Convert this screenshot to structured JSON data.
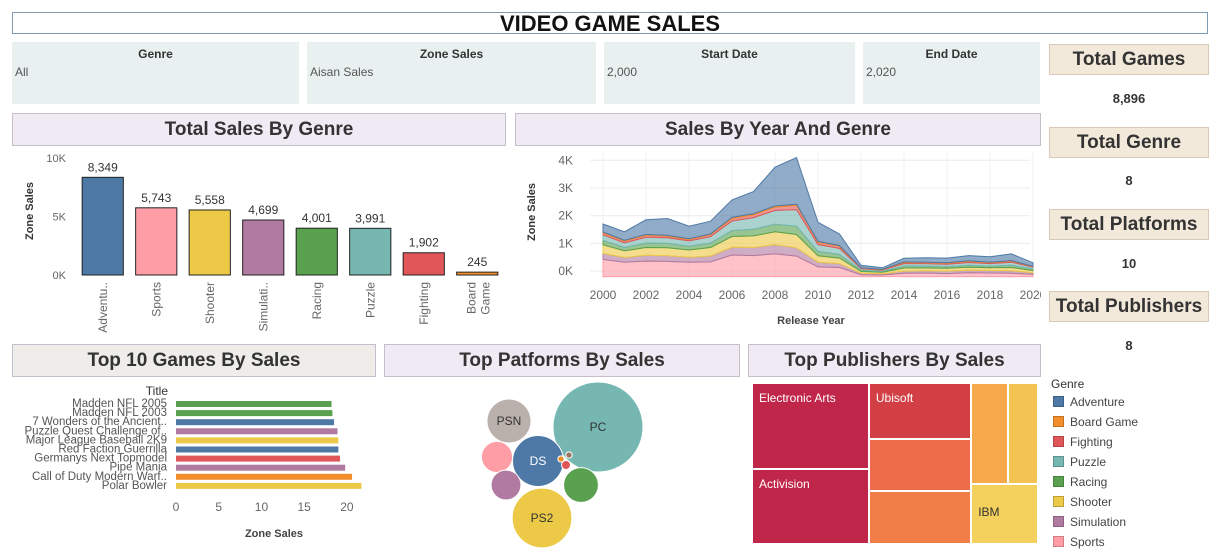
{
  "dashboard": {
    "title": "VIDEO GAME SALES"
  },
  "filters": [
    {
      "label": "Genre",
      "value": "All"
    },
    {
      "label": "Zone Sales",
      "value": "Aisan Sales"
    },
    {
      "label": "Start Date",
      "value": "2,000"
    },
    {
      "label": "End Date",
      "value": "2,020"
    }
  ],
  "kpis": [
    {
      "label": "Total Games",
      "value": "8,896"
    },
    {
      "label": "Total Genre",
      "value": "8"
    },
    {
      "label": "Total Platforms",
      "value": "10"
    },
    {
      "label": "Total Publishers",
      "value": "8"
    }
  ],
  "sections": {
    "sales_by_genre": "Total Sales By Genre",
    "sales_by_year": "Sales By Year And Genre",
    "top_games": "Top 10 Games By Sales",
    "top_platforms": "Top Patforms By Sales",
    "top_publishers": "Top Publishers By Sales"
  },
  "colors": {
    "Adventure": "#4e79a7",
    "Board Game": "#f28e2b",
    "Fighting": "#e15759",
    "Puzzle": "#76b7b2",
    "Racing": "#59a14f",
    "Shooter": "#edc948",
    "Simulation": "#b07aa1",
    "Sports": "#ff9da7"
  },
  "legend": {
    "title": "Genre",
    "items": [
      "Adventure",
      "Board Game",
      "Fighting",
      "Puzzle",
      "Racing",
      "Shooter",
      "Simulation",
      "Sports"
    ]
  },
  "chart_data": [
    {
      "type": "bar",
      "title": "Total Sales By Genre",
      "ylabel": "Zone Sales",
      "xlabel": "",
      "ylim": [
        0,
        10000
      ],
      "yticks": [
        {
          "v": 0,
          "label": "0K"
        },
        {
          "v": 5000,
          "label": "5K"
        },
        {
          "v": 10000,
          "label": "10K"
        }
      ],
      "categories": [
        "Adventure",
        "Sports",
        "Shooter",
        "Simulation",
        "Racing",
        "Puzzle",
        "Fighting",
        "Board Game"
      ],
      "tick_labels": [
        "Adventu..",
        "Sports",
        "Shooter",
        "Simulati..",
        "Racing",
        "Puzzle",
        "Fighting",
        "Board Game"
      ],
      "values": [
        8349,
        5743,
        5558,
        4699,
        4001,
        3991,
        1902,
        245
      ],
      "data_labels": [
        "8,349",
        "5,743",
        "5,558",
        "4,699",
        "4,001",
        "3,991",
        "1,902",
        "245"
      ],
      "grid": false
    },
    {
      "type": "area",
      "title": "Sales By Year And Genre",
      "xlabel": "Release Year",
      "ylabel": "Zone Sales",
      "stacked": true,
      "xlim": [
        2000,
        2020
      ],
      "ylim": [
        -250,
        4300
      ],
      "xticks": [
        2000,
        2002,
        2004,
        2006,
        2008,
        2010,
        2012,
        2014,
        2016,
        2018,
        2020
      ],
      "yticks": [
        {
          "v": 0,
          "label": "0K"
        },
        {
          "v": 1000,
          "label": "1K"
        },
        {
          "v": 2000,
          "label": "2K"
        },
        {
          "v": 3000,
          "label": "3K"
        },
        {
          "v": 4000,
          "label": "4K"
        }
      ],
      "x": [
        2000,
        2001,
        2002,
        2003,
        2004,
        2005,
        2006,
        2007,
        2008,
        2009,
        2010,
        2011,
        2012,
        2013,
        2014,
        2015,
        2016,
        2017,
        2018,
        2019,
        2020
      ],
      "series": [
        {
          "name": "Sports",
          "values": [
            620,
            520,
            560,
            550,
            520,
            530,
            780,
            760,
            820,
            740,
            350,
            330,
            70,
            60,
            120,
            130,
            110,
            140,
            130,
            120,
            80
          ]
        },
        {
          "name": "Simulation",
          "values": [
            220,
            170,
            210,
            200,
            180,
            210,
            280,
            290,
            330,
            300,
            170,
            140,
            50,
            40,
            80,
            80,
            90,
            90,
            90,
            90,
            60
          ]
        },
        {
          "name": "Shooter",
          "values": [
            310,
            240,
            280,
            290,
            260,
            310,
            390,
            420,
            470,
            480,
            230,
            200,
            70,
            60,
            110,
            100,
            100,
            110,
            100,
            120,
            80
          ]
        },
        {
          "name": "Racing",
          "values": [
            160,
            120,
            160,
            160,
            140,
            160,
            210,
            240,
            270,
            300,
            160,
            130,
            40,
            30,
            70,
            70,
            60,
            70,
            60,
            80,
            50
          ]
        },
        {
          "name": "Puzzle",
          "values": [
            200,
            170,
            210,
            200,
            190,
            230,
            350,
            420,
            500,
            600,
            250,
            220,
            60,
            40,
            90,
            90,
            90,
            100,
            90,
            110,
            70
          ]
        },
        {
          "name": "Fighting",
          "values": [
            70,
            60,
            70,
            60,
            50,
            70,
            90,
            100,
            120,
            150,
            80,
            70,
            20,
            20,
            40,
            30,
            30,
            40,
            30,
            40,
            20
          ]
        },
        {
          "name": "Board Game",
          "values": [
            30,
            30,
            30,
            30,
            30,
            30,
            40,
            40,
            40,
            40,
            30,
            30,
            10,
            10,
            20,
            20,
            20,
            20,
            20,
            20,
            10
          ]
        },
        {
          "name": "Adventure",
          "values": [
            290,
            310,
            530,
            610,
            450,
            460,
            630,
            800,
            1400,
            1690,
            690,
            420,
            90,
            60,
            130,
            160,
            170,
            190,
            200,
            240,
            130
          ]
        }
      ]
    },
    {
      "type": "bar",
      "orientation": "horizontal",
      "title": "Top 10 Games By Sales",
      "ylabel": "Title",
      "xlabel": "Zone Sales",
      "xlim": [
        0,
        22
      ],
      "xticks": [
        0,
        5,
        10,
        15,
        20
      ],
      "categories": [
        "Madden NFL 2005",
        "Madden NFL 2003",
        "7 Wonders of the Ancient..",
        "Puzzle Quest  Challenge of..",
        "Major League Baseball 2K9",
        "Red Faction  Guerrilla",
        "Germanys Next Topmodel",
        "Pipe Mania",
        "Call of Duty  Modern Warf..",
        "Polar Bowler"
      ],
      "values": [
        18.2,
        18.3,
        18.5,
        18.9,
        19.0,
        19.0,
        19.2,
        19.8,
        20.6,
        21.7
      ],
      "genres": [
        "Racing",
        "Racing",
        "Adventure",
        "Simulation",
        "Shooter",
        "Adventure",
        "Fighting",
        "Simulation",
        "Board Game",
        "Shooter"
      ],
      "grid": false
    },
    {
      "type": "bubble",
      "title": "Top Patforms By Sales",
      "labels": [
        "PC",
        "PS2",
        "DS",
        "PSN",
        "",
        "",
        "",
        "",
        "",
        ""
      ],
      "colors": [
        "#76b7b2",
        "#edc948",
        "#4e79a7",
        "#bab0ac",
        "#59a14f",
        "#ff9da7",
        "#b07aa1",
        "#e15759",
        "#f28e2b",
        "#9c755f"
      ],
      "values": [
        100,
        44,
        32,
        24,
        15,
        12,
        11,
        1,
        0.5,
        0.5
      ]
    },
    {
      "type": "treemap",
      "title": "Top Publishers By Sales",
      "labels": [
        "Electronic Arts",
        "Activision",
        "Ubisoft",
        "",
        "",
        "IBM",
        "",
        ""
      ],
      "colors": [
        "#c0264a",
        "#c0264a",
        "#d23f45",
        "#ee6c4a",
        "#f07f47",
        "#f3d15c",
        "#f5a94b",
        "#f4c452"
      ],
      "values": [
        30,
        26,
        17,
        16,
        16,
        12,
        11,
        9
      ]
    }
  ]
}
